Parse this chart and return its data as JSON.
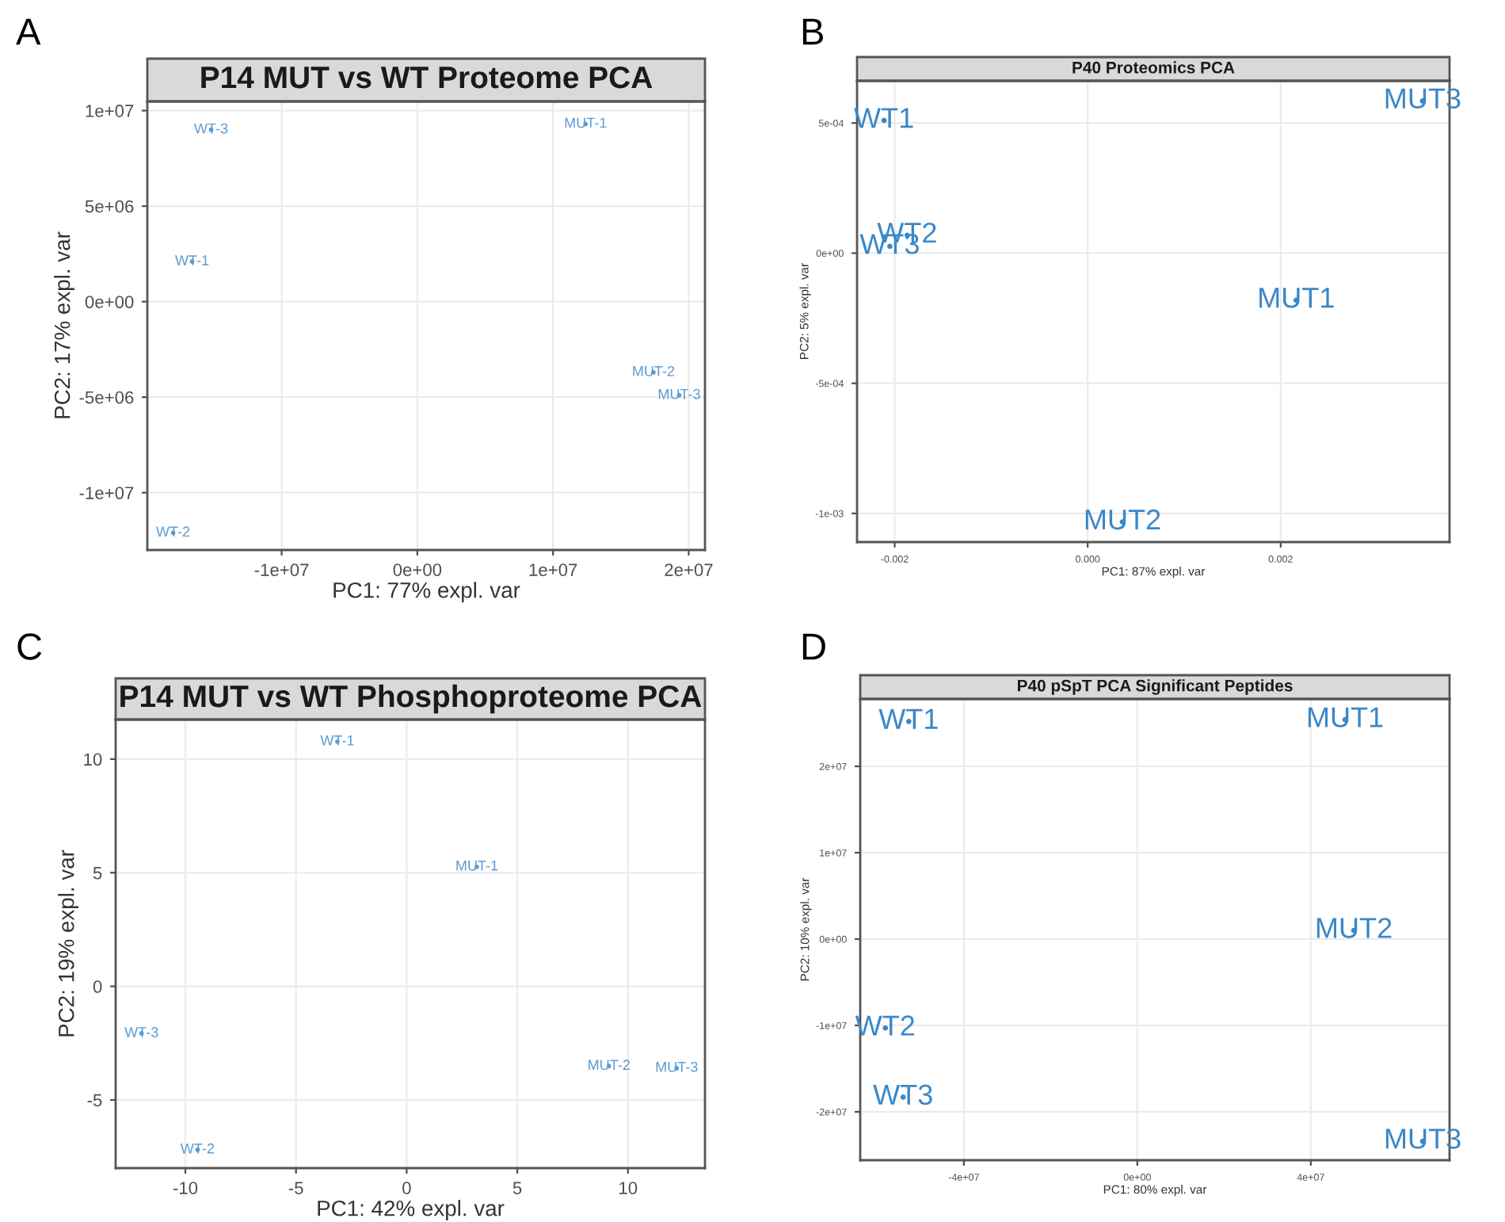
{
  "chart_data": [
    {
      "type": "scatter",
      "title": "P14 MUT vs WT Proteome PCA",
      "xlabel": "PC1: 77% expl. var",
      "ylabel": "PC2: 17% expl. var",
      "annotations": [
        "A"
      ],
      "marker": "circle",
      "grid": true,
      "xlim": [
        -19900000.0,
        21200000.0
      ],
      "ylim": [
        -13000000.0,
        10480000.0
      ],
      "xticks": [
        {
          "value": -10000000.0,
          "label": "-1e+07"
        },
        {
          "value": 0,
          "label": "0e+00"
        },
        {
          "value": 10000000.0,
          "label": "1e+07"
        },
        {
          "value": 20000000.0,
          "label": "2e+07"
        }
      ],
      "yticks": [
        {
          "value": -10000000.0,
          "label": "-1e+07"
        },
        {
          "value": -5000000.0,
          "label": "-5e+06"
        },
        {
          "value": 0,
          "label": "0e+00"
        },
        {
          "value": 5000000.0,
          "label": "5e+06"
        },
        {
          "value": 10000000.0,
          "label": "1e+07"
        }
      ],
      "series": [
        {
          "color": "#5b9bd5",
          "x": [
            -15200000.0,
            12400000.0,
            -16600000.0,
            17400000.0,
            19300000.0,
            -18000000.0
          ],
          "values": [
            9000000.0,
            9300000.0,
            2100000.0,
            -3700000.0,
            -4900000.0,
            -12100000.0
          ],
          "value_labels": [
            "WT-3",
            "MUT-1",
            "WT-1",
            "MUT-2",
            "MUT-3",
            "WT-2"
          ]
        }
      ]
    },
    {
      "type": "scatter",
      "title": "P40 Proteomics PCA",
      "xlabel": "PC1: 87% expl. var",
      "ylabel": "PC2: 5% expl. var",
      "annotations": [
        "B"
      ],
      "marker": "circle",
      "grid": true,
      "xlim": [
        -0.00239,
        0.00375
      ],
      "ylim": [
        -0.00111,
        0.000662
      ],
      "xticks": [
        {
          "value": -0.002,
          "label": "-0.002"
        },
        {
          "value": 0,
          "label": "0.000"
        },
        {
          "value": 0.002,
          "label": "0.002"
        }
      ],
      "yticks": [
        {
          "value": -0.001,
          "label": "-1e-03"
        },
        {
          "value": -0.0005,
          "label": "-5e-04"
        },
        {
          "value": 0,
          "label": "0e+00"
        },
        {
          "value": 0.0005,
          "label": "5e-04"
        }
      ],
      "series": [
        {
          "color": "#3a87c8",
          "x": [
            -0.00211,
            -0.00187,
            -0.00205,
            0.00216,
            0.00036,
            0.00347
          ],
          "values": [
            0.00051,
            6.9e-05,
            2.6e-05,
            -0.000181,
            -0.001033,
            0.000585
          ],
          "value_labels": [
            "WT1",
            "WT2",
            "WT3",
            "MUT1",
            "MUT2",
            "MUT3"
          ]
        }
      ]
    },
    {
      "type": "scatter",
      "title": "P14 MUT vs WT Phosphoproteome PCA",
      "xlabel": "PC1: 42% expl. var",
      "ylabel": "PC2: 19% expl. var",
      "annotations": [
        "C"
      ],
      "marker": "circle",
      "grid": true,
      "xlim": [
        -13.15,
        13.48
      ],
      "ylim": [
        -8.0,
        11.74
      ],
      "xticks": [
        -10,
        -5,
        0,
        5,
        10
      ],
      "yticks": [
        -5,
        0,
        5,
        10
      ],
      "series": [
        {
          "color": "#5b9bd5",
          "x": [
            -3.13,
            3.17,
            -11.98,
            9.14,
            12.2,
            -9.45
          ],
          "values": [
            10.77,
            5.26,
            -2.07,
            -3.51,
            -3.6,
            -7.19
          ],
          "value_labels": [
            "WT-1",
            "MUT-1",
            "WT-3",
            "MUT-2",
            "MUT-3",
            "WT-2"
          ]
        }
      ]
    },
    {
      "type": "scatter",
      "title": "P40 pSpT PCA Significant Peptides",
      "xlabel": "PC1: 80% expl. var",
      "ylabel": "PC2: 10% expl. var",
      "annotations": [
        "D"
      ],
      "marker": "circle",
      "grid": true,
      "xlim": [
        -63900000.0,
        72000000.0
      ],
      "ylim": [
        -25600000.0,
        27800000.0
      ],
      "xticks": [
        {
          "value": -40000000.0,
          "label": "-4e+07"
        },
        {
          "value": 0,
          "label": "0e+00"
        },
        {
          "value": 40000000.0,
          "label": "4e+07"
        }
      ],
      "yticks": [
        {
          "value": -20000000.0,
          "label": "-2e+07"
        },
        {
          "value": -10000000.0,
          "label": "-1e+07"
        },
        {
          "value": 0,
          "label": "0e+00"
        },
        {
          "value": 10000000.0,
          "label": "1e+07"
        },
        {
          "value": 20000000.0,
          "label": "2e+07"
        }
      ],
      "series": [
        {
          "color": "#3a87c8",
          "x": [
            -52700000.0,
            47900000.0,
            49900000.0,
            -58100000.0,
            -54000000.0,
            65800000.0
          ],
          "values": [
            25200000.0,
            25400000.0,
            1000000.0,
            -10300000.0,
            -18300000.0,
            -23400000.0
          ],
          "value_labels": [
            "WT1",
            "MUT1",
            "MUT2",
            "WT2",
            "WT3",
            "MUT3"
          ]
        }
      ]
    }
  ]
}
